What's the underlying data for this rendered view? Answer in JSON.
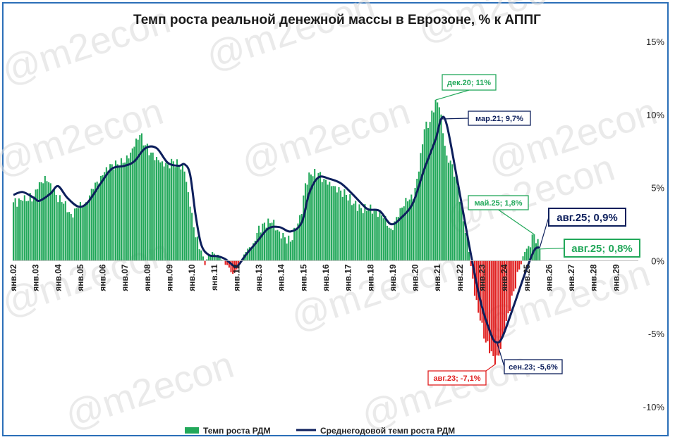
{
  "chart_data": {
    "type": "bar",
    "title": "Темп роста реальной денежной массы в Еврозоне, % к АППГ",
    "ylim": [
      -10,
      15
    ],
    "y_ticks": [
      {
        "value": 15,
        "label": "15%"
      },
      {
        "value": 10,
        "label": "10%"
      },
      {
        "value": 5,
        "label": "5%"
      },
      {
        "value": 0,
        "label": "0%"
      },
      {
        "value": -5,
        "label": "-5%"
      },
      {
        "value": -10,
        "label": "-10%"
      }
    ],
    "x_tick_labels": [
      "янв.02",
      "янв.03",
      "янв.04",
      "янв.05",
      "янв.06",
      "янв.07",
      "янв.08",
      "янв.09",
      "янв.10",
      "янв.11",
      "янв.12",
      "янв.13",
      "янв.14",
      "янв.15",
      "янв.16",
      "янв.17",
      "янв.18",
      "янв.19",
      "янв.20",
      "янв.21",
      "янв.22",
      "янв.23",
      "янв.24",
      "янв.25",
      "янв.26",
      "янв.27",
      "янв.28",
      "янв.29"
    ],
    "x_start": "2002-01",
    "bar_series": {
      "name": "Темп роста РДМ",
      "color": "#22a85a",
      "negative_color": "#e02020",
      "keypoints": [
        [
          "2002-01",
          4.0
        ],
        [
          "2002-06",
          4.1
        ],
        [
          "2002-12",
          4.4
        ],
        [
          "2003-02",
          4.9
        ],
        [
          "2003-06",
          5.8
        ],
        [
          "2003-09",
          5.3
        ],
        [
          "2003-12",
          4.5
        ],
        [
          "2004-04",
          3.9
        ],
        [
          "2004-08",
          3.2
        ],
        [
          "2004-12",
          3.6
        ],
        [
          "2005-04",
          4.0
        ],
        [
          "2005-08",
          4.9
        ],
        [
          "2005-12",
          5.8
        ],
        [
          "2006-03",
          6.4
        ],
        [
          "2006-06",
          6.6
        ],
        [
          "2006-09",
          6.6
        ],
        [
          "2006-12",
          6.7
        ],
        [
          "2007-03",
          7.0
        ],
        [
          "2007-06",
          7.8
        ],
        [
          "2007-09",
          8.6
        ],
        [
          "2007-12",
          7.9
        ],
        [
          "2008-03",
          7.4
        ],
        [
          "2008-06",
          7.1
        ],
        [
          "2008-09",
          6.8
        ],
        [
          "2008-12",
          6.6
        ],
        [
          "2009-03",
          6.8
        ],
        [
          "2009-06",
          6.5
        ],
        [
          "2009-09",
          6.1
        ],
        [
          "2009-12",
          3.7
        ],
        [
          "2010-03",
          1.6
        ],
        [
          "2010-06",
          0.7
        ],
        [
          "2010-08",
          -0.3
        ],
        [
          "2010-10",
          0.4
        ],
        [
          "2010-12",
          0.6
        ],
        [
          "2011-04",
          0.2
        ],
        [
          "2011-08",
          -0.3
        ],
        [
          "2011-11",
          -0.9
        ],
        [
          "2012-01",
          -0.6
        ],
        [
          "2012-06",
          0.6
        ],
        [
          "2012-10",
          1.2
        ],
        [
          "2012-12",
          1.9
        ],
        [
          "2013-04",
          2.6
        ],
        [
          "2013-08",
          2.6
        ],
        [
          "2013-12",
          2.0
        ],
        [
          "2014-03",
          1.6
        ],
        [
          "2014-06",
          1.3
        ],
        [
          "2014-09",
          2.2
        ],
        [
          "2014-12",
          3.2
        ],
        [
          "2015-02",
          5.3
        ],
        [
          "2015-05",
          5.9
        ],
        [
          "2015-09",
          6.0
        ],
        [
          "2015-12",
          5.6
        ],
        [
          "2016-03",
          5.4
        ],
        [
          "2016-06",
          5.1
        ],
        [
          "2016-09",
          4.8
        ],
        [
          "2016-12",
          4.5
        ],
        [
          "2017-04",
          3.9
        ],
        [
          "2017-08",
          3.6
        ],
        [
          "2017-12",
          3.5
        ],
        [
          "2018-04",
          3.5
        ],
        [
          "2018-08",
          2.9
        ],
        [
          "2018-12",
          2.2
        ],
        [
          "2019-04",
          3.0
        ],
        [
          "2019-08",
          4.3
        ],
        [
          "2019-12",
          4.2
        ],
        [
          "2020-03",
          6.1
        ],
        [
          "2020-06",
          9.0
        ],
        [
          "2020-09",
          9.5
        ],
        [
          "2020-12",
          11.0
        ],
        [
          "2021-02",
          10.5
        ],
        [
          "2021-06",
          7.2
        ],
        [
          "2021-09",
          6.6
        ],
        [
          "2021-12",
          5.1
        ],
        [
          "2022-03",
          2.7
        ],
        [
          "2022-06",
          0.6
        ],
        [
          "2022-09",
          -2.4
        ],
        [
          "2022-12",
          -4.1
        ],
        [
          "2023-03",
          -5.6
        ],
        [
          "2023-06",
          -6.2
        ],
        [
          "2023-08",
          -7.1
        ],
        [
          "2023-10",
          -6.5
        ],
        [
          "2023-12",
          -5.2
        ],
        [
          "2024-03",
          -3.6
        ],
        [
          "2024-06",
          -2.1
        ],
        [
          "2024-09",
          -0.6
        ],
        [
          "2024-12",
          0.6
        ],
        [
          "2025-02",
          1.0
        ],
        [
          "2025-05",
          1.8
        ],
        [
          "2025-08",
          0.8
        ]
      ]
    },
    "line_series": {
      "name": "Среднегодовой темп роста РДМ",
      "color": "#0d1f5c",
      "points": [
        [
          "2002-01",
          4.5
        ],
        [
          "2002-06",
          4.7
        ],
        [
          "2002-12",
          4.3
        ],
        [
          "2003-03",
          4.1
        ],
        [
          "2003-09",
          4.6
        ],
        [
          "2004-01",
          5.1
        ],
        [
          "2004-06",
          4.3
        ],
        [
          "2004-12",
          3.7
        ],
        [
          "2005-05",
          4.0
        ],
        [
          "2005-12",
          5.3
        ],
        [
          "2006-06",
          6.3
        ],
        [
          "2007-01",
          6.5
        ],
        [
          "2007-06",
          6.8
        ],
        [
          "2007-12",
          7.7
        ],
        [
          "2008-06",
          7.7
        ],
        [
          "2008-12",
          6.7
        ],
        [
          "2009-06",
          6.5
        ],
        [
          "2009-09",
          6.6
        ],
        [
          "2009-12",
          5.9
        ],
        [
          "2010-03",
          3.1
        ],
        [
          "2010-06",
          1.1
        ],
        [
          "2010-10",
          0.4
        ],
        [
          "2011-03",
          0.3
        ],
        [
          "2011-07",
          0.1
        ],
        [
          "2011-12",
          -0.4
        ],
        [
          "2012-02",
          -0.3
        ],
        [
          "2012-06",
          0.4
        ],
        [
          "2012-12",
          1.3
        ],
        [
          "2013-06",
          2.2
        ],
        [
          "2013-12",
          2.3
        ],
        [
          "2014-06",
          2.0
        ],
        [
          "2014-12",
          2.6
        ],
        [
          "2015-04",
          4.6
        ],
        [
          "2015-09",
          5.7
        ],
        [
          "2016-03",
          5.6
        ],
        [
          "2016-09",
          5.3
        ],
        [
          "2017-03",
          4.6
        ],
        [
          "2017-09",
          3.8
        ],
        [
          "2017-12",
          3.5
        ],
        [
          "2018-06",
          3.4
        ],
        [
          "2018-12",
          2.5
        ],
        [
          "2019-06",
          3.0
        ],
        [
          "2019-12",
          4.0
        ],
        [
          "2020-06",
          6.3
        ],
        [
          "2020-12",
          8.3
        ],
        [
          "2021-03",
          9.7
        ],
        [
          "2021-06",
          9.3
        ],
        [
          "2021-12",
          5.3
        ],
        [
          "2022-06",
          1.1
        ],
        [
          "2022-12",
          -2.7
        ],
        [
          "2023-06",
          -5.1
        ],
        [
          "2023-09",
          -5.6
        ],
        [
          "2023-12",
          -5.2
        ],
        [
          "2024-06",
          -3.1
        ],
        [
          "2024-12",
          -0.9
        ],
        [
          "2025-05",
          0.7
        ],
        [
          "2025-08",
          0.9
        ]
      ]
    },
    "annotations": [
      {
        "text": "дек.20; 11%",
        "date": "2020-12",
        "value": 11.0,
        "color": "#22a85a"
      },
      {
        "text": "мар.21; 9,7%",
        "date": "2021-03",
        "value": 9.7,
        "color": "#0d1f5c"
      },
      {
        "text": "май.25; 1,8%",
        "date": "2025-05",
        "value": 1.8,
        "color": "#22a85a"
      },
      {
        "text": "авг.25; 0,9%",
        "date": "2025-08",
        "value": 0.9,
        "color": "#0d1f5c"
      },
      {
        "text": "авг.25; 0,8%",
        "date": "2025-08",
        "value": 0.8,
        "color": "#22a85a"
      },
      {
        "text": "авг.23; -7,1%",
        "date": "2023-08",
        "value": -7.1,
        "color": "#e02020"
      },
      {
        "text": "сен.23; -5,6%",
        "date": "2023-09",
        "value": -5.6,
        "color": "#0d1f5c"
      }
    ],
    "legend": {
      "placement": "bottom",
      "items": [
        {
          "label": "Темп роста РДМ",
          "color": "#22a85a",
          "kind": "bar"
        },
        {
          "label": "Среднегодовой темп роста РДМ",
          "color": "#0d1f5c",
          "kind": "line"
        }
      ]
    },
    "watermark": "@m2econ",
    "grid": false
  }
}
